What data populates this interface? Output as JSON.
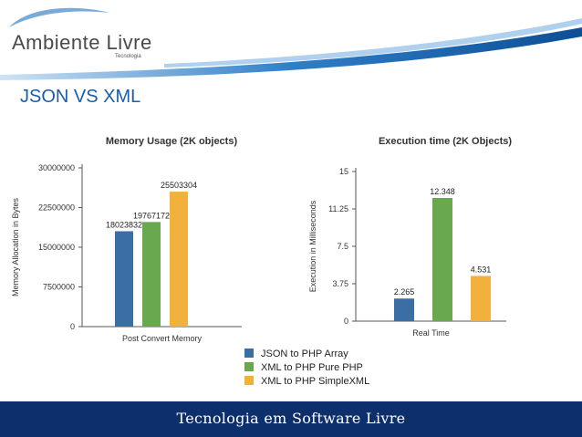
{
  "header": {
    "logo_text": "Ambiente Livre",
    "logo_subtext": "Tecnologia"
  },
  "slide_title": "JSON VS XML",
  "footer": {
    "text": "Tecnologia em Software Livre"
  },
  "colors": {
    "json": "#3c6ea6",
    "xml_pure": "#6aa84f",
    "xml_simple": "#f2b13c",
    "footer": "#0d2f6b",
    "title": "#1a5ea8"
  },
  "chart_data": [
    {
      "type": "bar",
      "title": "Memory Usage (2K objects)",
      "categories": [
        "Post Convert Memory"
      ],
      "xlabel": "Post Convert Memory",
      "ylabel": "Memory Allocation in Bytes",
      "ylim": [
        0,
        30000000
      ],
      "yticks": [
        "0",
        "7500000",
        "15000000",
        "22500000",
        "30000000"
      ],
      "grid": false,
      "series": [
        {
          "name": "JSON to PHP Array",
          "values": [
            18023832
          ],
          "label": "18023832"
        },
        {
          "name": "XML to PHP Pure PHP",
          "values": [
            19767172
          ],
          "label": "19767172"
        },
        {
          "name": "XML to PHP SimpleXML",
          "values": [
            25503304
          ],
          "label": "25503304"
        }
      ]
    },
    {
      "type": "bar",
      "title": "Execution time (2K Objects)",
      "categories": [
        "Real Time"
      ],
      "xlabel": "Real Time",
      "ylabel": "Execution in Milliseconds",
      "ylim": [
        0,
        15
      ],
      "yticks": [
        "0",
        "3.75",
        "7.5",
        "11.25",
        "15"
      ],
      "grid": false,
      "series": [
        {
          "name": "JSON to PHP Array",
          "values": [
            2.265
          ],
          "label": "2.265"
        },
        {
          "name": "XML to PHP Pure PHP",
          "values": [
            12.348
          ],
          "label": "12.348"
        },
        {
          "name": "XML to PHP SimpleXML",
          "values": [
            4.531
          ],
          "label": "4.531"
        }
      ]
    }
  ],
  "legend": {
    "placement": "bottom-center",
    "items": [
      "JSON to PHP Array",
      "XML to PHP Pure PHP",
      "XML to PHP SimpleXML"
    ]
  }
}
